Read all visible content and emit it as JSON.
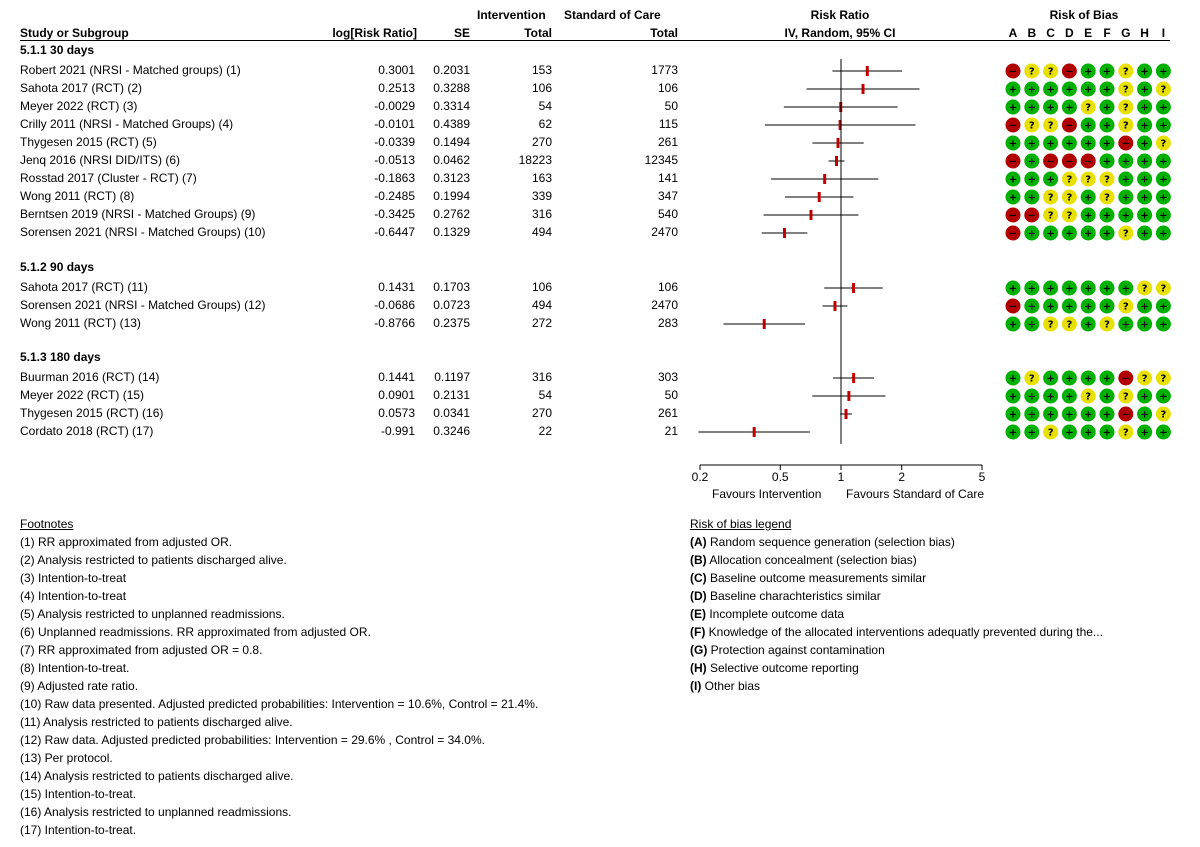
{
  "header": {
    "study_col": "Study or Subgroup",
    "lrr_col": "log[Risk Ratio]",
    "se_col": "SE",
    "int_top": "Intervention",
    "int_bottom": "Total",
    "soc_top": "Standard of Care",
    "soc_bottom": "Total",
    "rr_top": "Risk Ratio",
    "rr_bottom": "IV, Random, 95% CI",
    "rob_top": "Risk of Bias",
    "rob_letters": [
      "A",
      "B",
      "C",
      "D",
      "E",
      "F",
      "G",
      "H",
      "I"
    ]
  },
  "subgroups": [
    {
      "title": "5.1.1 30 days",
      "studies": [
        {
          "name": "Robert 2021 (NRSI - Matched groups) (1)",
          "lrr": "0.3001",
          "se": "0.2031",
          "int_total": "153",
          "soc_total": "1773",
          "rob": [
            "red",
            "yes",
            "yes",
            "red",
            "green",
            "green",
            "yes",
            "green",
            "green"
          ]
        },
        {
          "name": "Sahota 2017 (RCT) (2)",
          "lrr": "0.2513",
          "se": "0.3288",
          "int_total": "106",
          "soc_total": "106",
          "rob": [
            "green",
            "green",
            "green",
            "green",
            "green",
            "green",
            "yes",
            "green",
            "yes"
          ]
        },
        {
          "name": "Meyer 2022 (RCT) (3)",
          "lrr": "-0.0029",
          "se": "0.3314",
          "int_total": "54",
          "soc_total": "50",
          "rob": [
            "green",
            "green",
            "green",
            "green",
            "yes",
            "green",
            "yes",
            "green",
            "green"
          ]
        },
        {
          "name": "Crilly 2011 (NRSI - Matched Groups) (4)",
          "lrr": "-0.0101",
          "se": "0.4389",
          "int_total": "62",
          "soc_total": "115",
          "rob": [
            "red",
            "yes",
            "yes",
            "red",
            "green",
            "green",
            "yes",
            "green",
            "green"
          ]
        },
        {
          "name": "Thygesen 2015 (RCT) (5)",
          "lrr": "-0.0339",
          "se": "0.1494",
          "int_total": "270",
          "soc_total": "261",
          "rob": [
            "green",
            "green",
            "green",
            "green",
            "green",
            "green",
            "red",
            "green",
            "yes"
          ]
        },
        {
          "name": "Jenq 2016 (NRSI DID/ITS) (6)",
          "lrr": "-0.0513",
          "se": "0.0462",
          "int_total": "18223",
          "soc_total": "12345",
          "rob": [
            "red",
            "green",
            "red",
            "red",
            "red",
            "green",
            "green",
            "green",
            "green"
          ]
        },
        {
          "name": "Rosstad 2017 (Cluster - RCT) (7)",
          "lrr": "-0.1863",
          "se": "0.3123",
          "int_total": "163",
          "soc_total": "141",
          "rob": [
            "green",
            "green",
            "green",
            "yes",
            "yes",
            "yes",
            "green",
            "green",
            "green"
          ]
        },
        {
          "name": "Wong 2011 (RCT) (8)",
          "lrr": "-0.2485",
          "se": "0.1994",
          "int_total": "339",
          "soc_total": "347",
          "rob": [
            "green",
            "green",
            "yes",
            "yes",
            "green",
            "yes",
            "green",
            "green",
            "green"
          ]
        },
        {
          "name": "Berntsen 2019 (NRSI - Matched Groups) (9)",
          "lrr": "-0.3425",
          "se": "0.2762",
          "int_total": "316",
          "soc_total": "540",
          "rob": [
            "red",
            "red",
            "yes",
            "yes",
            "green",
            "green",
            "green",
            "green",
            "green"
          ]
        },
        {
          "name": "Sorensen 2021 (NRSI - Matched Groups) (10)",
          "lrr": "-0.6447",
          "se": "0.1329",
          "int_total": "494",
          "soc_total": "2470",
          "rob": [
            "red",
            "green",
            "green",
            "green",
            "green",
            "green",
            "yes",
            "green",
            "green"
          ]
        }
      ]
    },
    {
      "title": "5.1.2 90 days",
      "studies": [
        {
          "name": "Sahota 2017 (RCT) (11)",
          "lrr": "0.1431",
          "se": "0.1703",
          "int_total": "106",
          "soc_total": "106",
          "rob": [
            "green",
            "green",
            "green",
            "green",
            "green",
            "green",
            "green",
            "yes",
            "yes"
          ]
        },
        {
          "name": "Sorensen 2021 (NRSI - Matched Groups) (12)",
          "lrr": "-0.0686",
          "se": "0.0723",
          "int_total": "494",
          "soc_total": "2470",
          "rob": [
            "red",
            "green",
            "green",
            "green",
            "green",
            "green",
            "yes",
            "green",
            "green"
          ]
        },
        {
          "name": "Wong 2011 (RCT) (13)",
          "lrr": "-0.8766",
          "se": "0.2375",
          "int_total": "272",
          "soc_total": "283",
          "rob": [
            "green",
            "green",
            "yes",
            "yes",
            "green",
            "yes",
            "green",
            "green",
            "green"
          ]
        }
      ]
    },
    {
      "title": "5.1.3 180 days",
      "studies": [
        {
          "name": "Buurman 2016 (RCT) (14)",
          "lrr": "0.1441",
          "se": "0.1197",
          "int_total": "316",
          "soc_total": "303",
          "rob": [
            "green",
            "yes",
            "green",
            "green",
            "green",
            "green",
            "red",
            "yes",
            "yes"
          ]
        },
        {
          "name": "Meyer 2022 (RCT) (15)",
          "lrr": "0.0901",
          "se": "0.2131",
          "int_total": "54",
          "soc_total": "50",
          "rob": [
            "green",
            "green",
            "green",
            "green",
            "yes",
            "green",
            "yes",
            "green",
            "green"
          ]
        },
        {
          "name": "Thygesen 2015 (RCT) (16)",
          "lrr": "0.0573",
          "se": "0.0341",
          "int_total": "270",
          "soc_total": "261",
          "rob": [
            "green",
            "green",
            "green",
            "green",
            "green",
            "green",
            "red",
            "green",
            "yes"
          ]
        },
        {
          "name": "Cordato 2018 (RCT) (17)",
          "lrr": "-0.991",
          "se": "0.3246",
          "int_total": "22",
          "soc_total": "21",
          "rob": [
            "green",
            "green",
            "yes",
            "green",
            "green",
            "green",
            "yes",
            "green",
            "green"
          ]
        }
      ]
    }
  ],
  "chart_data": {
    "type": "forest",
    "scale": "log",
    "xlim": [
      0.2,
      5
    ],
    "ticks": [
      0.2,
      0.5,
      1,
      2,
      5
    ],
    "tick_labels": [
      "0.2",
      "0.5",
      "1",
      "2",
      "5"
    ],
    "label_left": "Favours Intervention",
    "label_right": "Favours Standard of Care",
    "ci_z": 1.96
  },
  "footnotes": {
    "title": "Footnotes",
    "items": [
      "(1) RR approximated from adjusted OR.",
      "(2) Analysis restricted to patients discharged alive.",
      "(3) Intention-to-treat",
      "(4) Intention-to-treat",
      "(5) Analysis restricted to unplanned readmissions.",
      "(6) Unplanned readmissions. RR approximated from adjusted OR.",
      "(7) RR approximated from adjusted OR = 0.8.",
      "(8) Intention-to-treat.",
      "(9) Adjusted rate ratio.",
      "(10) Raw data presented. Adjusted predicted probabilities: Intervention = 10.6%, Control = 21.4%.",
      "(11) Analysis restricted to patients discharged alive.",
      "(12) Raw data. Adjusted predicted probabilities: Intervention = 29.6% , Control = 34.0%.",
      "(13) Per protocol.",
      "(14) Analysis restricted to patients discharged alive.",
      "(15) Intention-to-treat.",
      "(16) Analysis restricted to unplanned readmissions.",
      "(17) Intention-to-treat."
    ]
  },
  "rob_legend": {
    "title": "Risk of bias legend",
    "items": [
      {
        "letter": "(A)",
        "text": " Random sequence generation (selection bias)"
      },
      {
        "letter": "(B)",
        "text": " Allocation concealment (selection bias)"
      },
      {
        "letter": "(C)",
        "text": " Baseline outcome measurements similar"
      },
      {
        "letter": "(D)",
        "text": " Baseline charachteristics similar"
      },
      {
        "letter": "(E)",
        "text": " Incomplete outcome data"
      },
      {
        "letter": "(F)",
        "text": " Knowledge of the allocated interventions adequatly prevented during the..."
      },
      {
        "letter": "(G)",
        "text": " Protection against contamination"
      },
      {
        "letter": "(H)",
        "text": " Selective outcome reporting"
      },
      {
        "letter": "(I)",
        "text": " Other bias"
      }
    ]
  },
  "colors": {
    "green": "#00b000",
    "yes": "#e8e000",
    "red": "#b00000",
    "point": "#c00000",
    "line": "#000000"
  },
  "symbols": {
    "green": "+",
    "yes": "?",
    "red": "−"
  }
}
